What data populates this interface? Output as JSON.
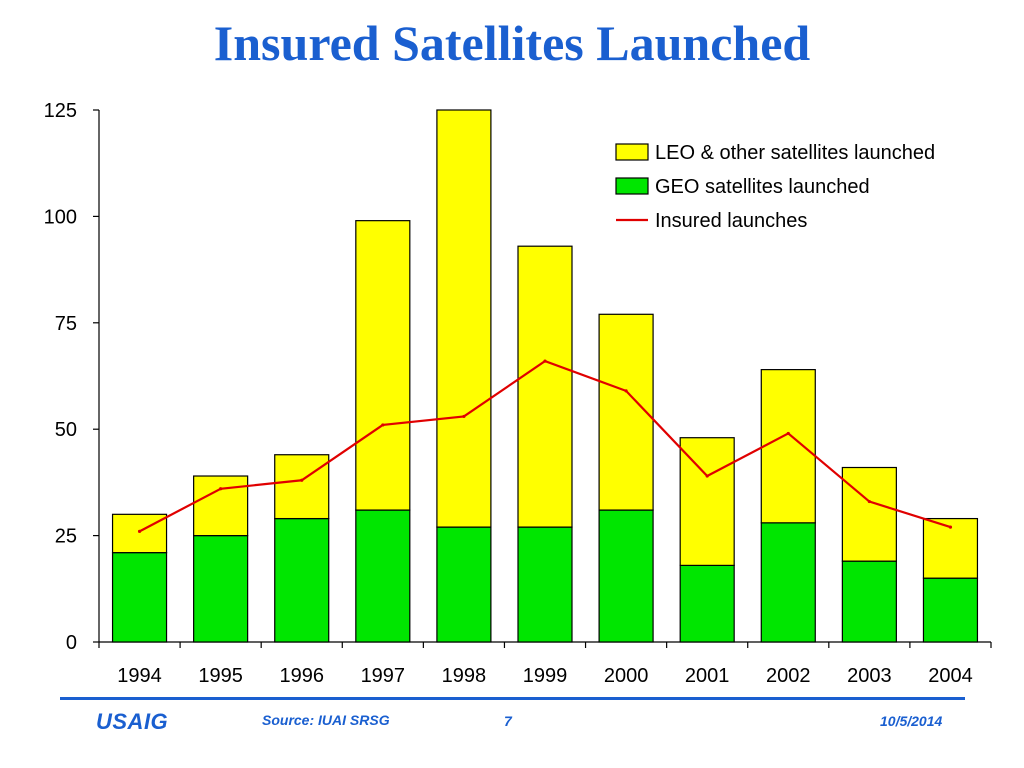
{
  "slide": {
    "title": "Insured Satellites Launched",
    "footer": {
      "logo": "USAIG",
      "source": "Source: IUAI SRSG",
      "page_number": "7",
      "date": "10/5/2014"
    }
  },
  "chart_data": {
    "type": "bar",
    "stacked": true,
    "categories": [
      "1994",
      "1995",
      "1996",
      "1997",
      "1998",
      "1999",
      "2000",
      "2001",
      "2002",
      "2003",
      "2004"
    ],
    "series": [
      {
        "name": "GEO satellites launched",
        "kind": "bar",
        "color": "#00e600",
        "values": [
          21,
          25,
          29,
          31,
          27,
          27,
          31,
          18,
          28,
          19,
          15
        ]
      },
      {
        "name": "LEO & other satellites launched",
        "kind": "bar",
        "color": "#ffff00",
        "values": [
          9,
          14,
          15,
          68,
          98,
          66,
          46,
          30,
          36,
          22,
          14
        ]
      },
      {
        "name": "Insured launches",
        "kind": "line",
        "color": "#e00000",
        "values": [
          26,
          36,
          38,
          51,
          53,
          66,
          59,
          39,
          49,
          33,
          27
        ]
      }
    ],
    "legend_order": [
      1,
      0,
      2
    ],
    "ylim": [
      0,
      125
    ],
    "yticks": [
      "0",
      "25",
      "50",
      "75",
      "100",
      "125"
    ],
    "ytick_values": [
      0,
      25,
      50,
      75,
      100,
      125
    ],
    "grid": false,
    "legend_position": "top-right",
    "title": "",
    "xlabel": "",
    "ylabel": ""
  }
}
